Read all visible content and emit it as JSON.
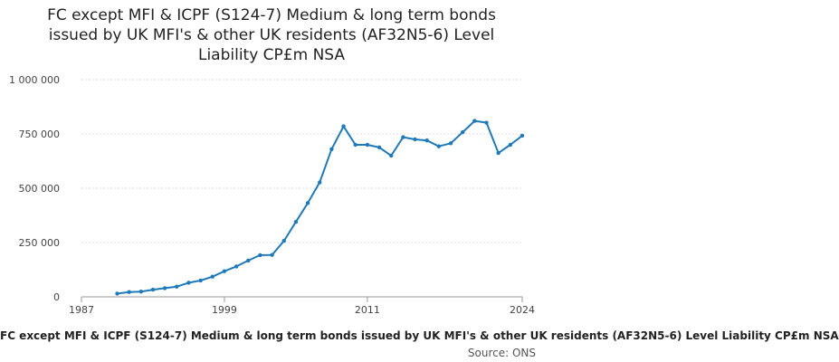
{
  "chart_data": {
    "type": "line",
    "title": "FC except MFI & ICPF (S124-7) Medium & long term bonds issued by UK MFI's & other UK residents (AF32N5-6) Level Liability CP£m NSA",
    "title_lines": [
      "FC except MFI & ICPF (S124-7) Medium & long term bonds",
      "issued by UK MFI's & other UK residents (AF32N5-6) Level",
      "Liability CP£m NSA"
    ],
    "xlabel": "",
    "ylabel": "",
    "xlim": [
      1987,
      2024
    ],
    "ylim": [
      0,
      1000000
    ],
    "x_ticks": [
      1987,
      1999,
      2011,
      2024
    ],
    "x_tick_labels": [
      "1987",
      "1999",
      "2011",
      "2024"
    ],
    "y_ticks": [
      0,
      250000,
      500000,
      750000,
      1000000
    ],
    "y_tick_labels": [
      "0",
      "250 000",
      "500 000",
      "750 000",
      "1 000 000"
    ],
    "grid": "horizontal",
    "series": [
      {
        "name": "FC except MFI & ICPF (S124-7) Medium & long term bonds issued by UK MFI's & other UK residents (AF32N5-6) Level Liability CP£m NSA",
        "color": "#1f7ab8",
        "x": [
          1990,
          1991,
          1992,
          1993,
          1994,
          1995,
          1996,
          1997,
          1998,
          1999,
          2000,
          2001,
          2002,
          2003,
          2004,
          2005,
          2006,
          2007,
          2008,
          2009,
          2010,
          2011,
          2012,
          2013,
          2014,
          2015,
          2016,
          2017,
          2018,
          2019,
          2020,
          2021,
          2022,
          2023,
          2024
        ],
        "values": [
          15000,
          22000,
          24000,
          33000,
          40000,
          47000,
          65000,
          75000,
          93000,
          118000,
          140000,
          167000,
          192000,
          193000,
          258000,
          345000,
          432000,
          527000,
          680000,
          785000,
          700000,
          700000,
          688000,
          650000,
          735000,
          725000,
          720000,
          693000,
          707000,
          758000,
          810000,
          802000,
          662000,
          700000,
          742000
        ]
      }
    ]
  },
  "legend_label": "FC except MFI & ICPF (S124-7) Medium & long term bonds issued by UK MFI's & other UK residents (AF32N5-6) Level Liability CP£m NSA",
  "source_label": "Source: ONS"
}
